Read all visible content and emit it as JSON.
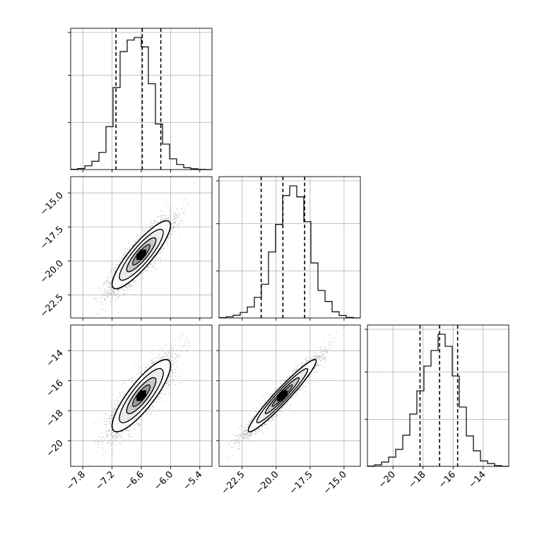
{
  "chart_data": {
    "type": "corner",
    "title": "",
    "grid": true,
    "line_color": "#000000",
    "scatter_color": "#9e9e9e",
    "contour_fills": [
      "#ffffff",
      "#ececec",
      "#c8c8c8",
      "#9a9a9a",
      "#5a5a5a",
      "#000000"
    ],
    "parameters": [
      {
        "label": "",
        "range": [
          -8.05,
          -5.15
        ],
        "ticks": [
          -7.8,
          -7.2,
          -6.6,
          -6.0,
          -5.4
        ],
        "tick_labels": [
          "−7.8",
          "−7.2",
          "−6.6",
          "−6.0",
          "−5.4"
        ],
        "quantiles": [
          -7.12,
          -6.58,
          -6.2
        ],
        "histogram": {
          "bin_start": -8.05,
          "bin_width": 0.145,
          "counts": [
            2,
            8,
            28,
            62,
            128,
            320,
            612,
            880,
            966,
            985,
            915,
            640,
            340,
            190,
            80,
            38,
            14,
            6,
            2,
            0
          ]
        }
      },
      {
        "label": "",
        "range": [
          -24.2,
          -13.8
        ],
        "ticks": [
          -22.5,
          -20.0,
          -17.5,
          -15.0
        ],
        "tick_labels": [
          "−22.5",
          "−20.0",
          "−17.5",
          "−15.0"
        ],
        "quantiles": [
          -21.1,
          -19.5,
          -17.9
        ],
        "histogram": {
          "bin_start": -24.2,
          "bin_width": 0.52,
          "counts": [
            2,
            8,
            20,
            40,
            80,
            150,
            245,
            480,
            680,
            890,
            960,
            880,
            700,
            400,
            200,
            120,
            45,
            18,
            4,
            0
          ]
        }
      },
      {
        "label": "",
        "range": [
          -21.7,
          -12.3
        ],
        "ticks": [
          -20,
          -18,
          -16,
          -14
        ],
        "tick_labels": [
          "−20",
          "−18",
          "−16",
          "−14"
        ],
        "quantiles": [
          -18.2,
          -16.9,
          -15.7
        ],
        "histogram": {
          "bin_start": -21.7,
          "bin_width": 0.47,
          "counts": [
            2,
            10,
            30,
            65,
            120,
            220,
            370,
            535,
            710,
            820,
            935,
            850,
            640,
            420,
            215,
            110,
            38,
            20,
            5,
            0
          ]
        }
      }
    ],
    "pairs": [
      {
        "x_param": 0,
        "y_param": 1,
        "mean": [
          -6.6,
          -19.55
        ],
        "sd": [
          0.3,
          1.25
        ],
        "correlation": 0.87,
        "samples": 3500
      },
      {
        "x_param": 0,
        "y_param": 2,
        "mean": [
          -6.6,
          -17.0
        ],
        "sd": [
          0.3,
          1.2
        ],
        "correlation": 0.84,
        "samples": 3500
      },
      {
        "x_param": 1,
        "y_param": 2,
        "mean": [
          -19.55,
          -17.0
        ],
        "sd": [
          1.25,
          1.2
        ],
        "correlation": 0.96,
        "samples": 3500
      }
    ]
  }
}
